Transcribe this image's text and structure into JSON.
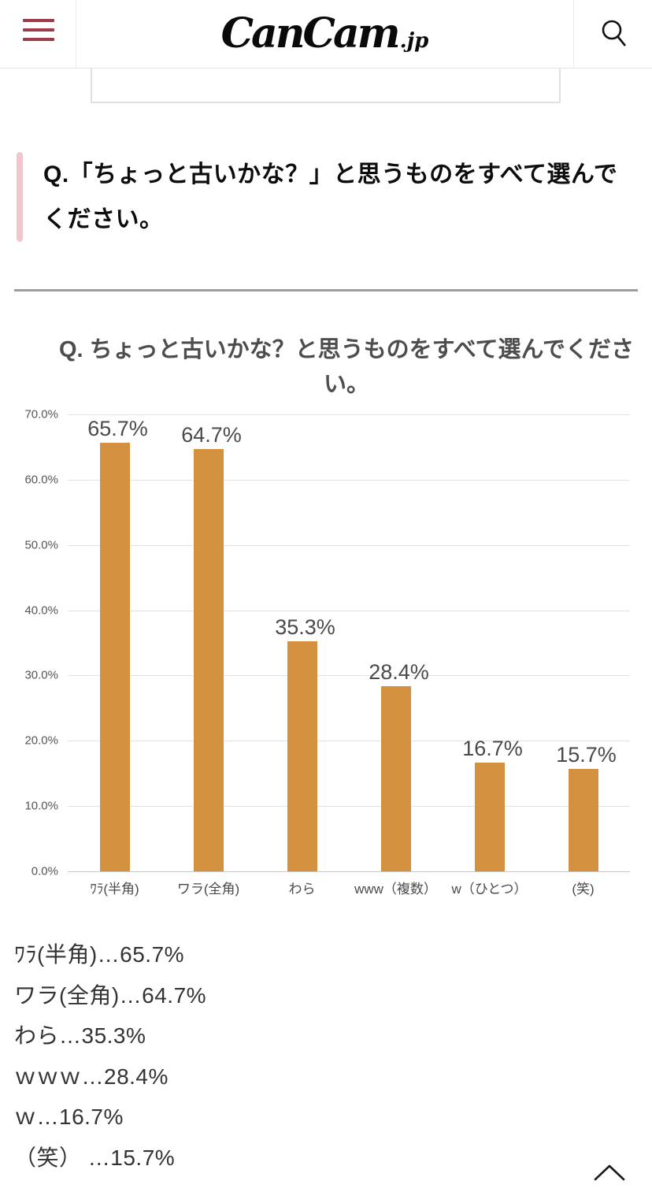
{
  "header": {
    "logo_main": "CanCam",
    "logo_suffix": ".jp"
  },
  "question": {
    "heading": "Q.「ちょっと古いかな？」と思うものをすべて選んでください。"
  },
  "chart_data": {
    "type": "bar",
    "title": "Q. ちょっと古いかな？と思うものをすべて選んでください。",
    "categories": [
      "ﾜﾗ(半角)",
      "ワラ(全角)",
      "わら",
      "www（複数）",
      "w（ひとつ）",
      "(笑)"
    ],
    "values": [
      65.7,
      64.7,
      35.3,
      28.4,
      16.7,
      15.7
    ],
    "value_labels": [
      "65.7%",
      "64.7%",
      "35.3%",
      "28.4%",
      "16.7%",
      "15.7%"
    ],
    "xlabel": "",
    "ylabel": "",
    "ylim": [
      0,
      70
    ],
    "ytick_labels": [
      "70.0%",
      "60.0%",
      "50.0%",
      "40.0%",
      "30.0%",
      "20.0%",
      "10.0%",
      "0.0%"
    ],
    "grid": true,
    "legend_position": "none",
    "bar_color": "#d3913f"
  },
  "results": {
    "items": [
      "ﾜﾗ(半角)…65.7%",
      "ワラ(全角)…64.7%",
      "わら…35.3%",
      "ｗｗｗ…28.4%",
      "ｗ…16.7%",
      "（笑） …15.7%"
    ]
  },
  "colors": {
    "accent_maroon": "#9e3b49",
    "accent_pink": "#f2c6cd",
    "bar_orange": "#d3913f",
    "grid_gray": "#e3e3e3"
  }
}
